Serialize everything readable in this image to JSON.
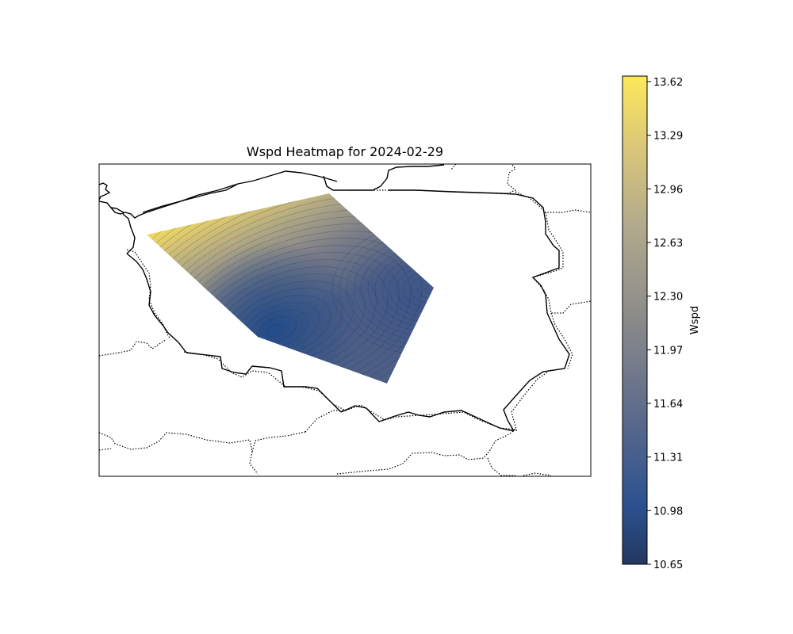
{
  "chart_data": {
    "type": "heatmap",
    "title": "Wspd Heatmap for 2024-02-29",
    "colormap": "cividis",
    "colorbar": {
      "label": "Wspd",
      "min": 10.65,
      "max": 13.62,
      "ticks": [
        "13.62",
        "13.29",
        "12.96",
        "12.63",
        "12.30",
        "11.97",
        "11.64",
        "11.31",
        "10.98",
        "10.65"
      ]
    },
    "colors": {
      "low": "#25426e",
      "mid": "#8a8a8a",
      "high": "#fce45a",
      "coastline": "#000000",
      "borders": "#000000"
    },
    "field_description": {
      "value_at_northwest_corner": 13.62,
      "value_at_north_corner": 13.1,
      "value_at_east_corner": 11.2,
      "value_at_south_corner": 11.3,
      "value_at_southwest_corner": 10.9
    },
    "background_layers": [
      "coastline-solid",
      "country-borders-dotted"
    ]
  }
}
